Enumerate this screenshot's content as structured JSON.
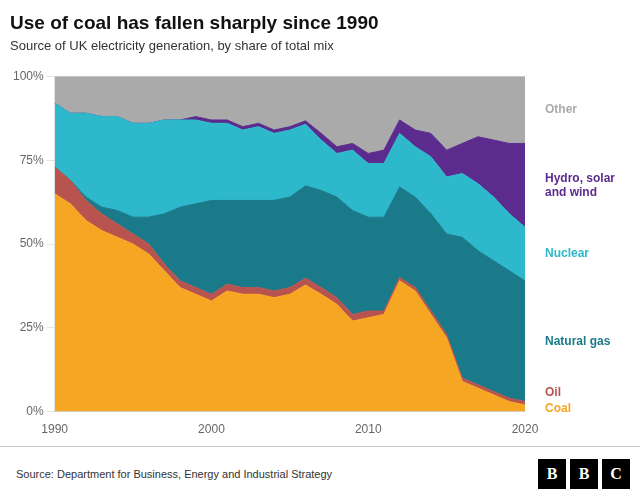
{
  "chart_data": {
    "type": "area",
    "title": "Use of coal has fallen sharply since 1990",
    "subtitle": "Source of UK electricity generation, by share of total mix",
    "source": "Source: Department for Business, Energy and Industrial Strategy",
    "logo": "BBC",
    "stacked": true,
    "grid": "y",
    "x": [
      1990,
      1991,
      1992,
      1993,
      1994,
      1995,
      1996,
      1997,
      1998,
      1999,
      2000,
      2001,
      2002,
      2003,
      2004,
      2005,
      2006,
      2007,
      2008,
      2009,
      2010,
      2011,
      2012,
      2013,
      2014,
      2015,
      2016,
      2017,
      2018,
      2019,
      2020
    ],
    "xlim": [
      1990,
      2020
    ],
    "xticks": [
      1990,
      2000,
      2010,
      2020
    ],
    "ylim": [
      0,
      100
    ],
    "yticks": [
      {
        "value": 0,
        "label": "0%"
      },
      {
        "value": 25,
        "label": "25%"
      },
      {
        "value": 50,
        "label": "50%"
      },
      {
        "value": 75,
        "label": "75%"
      },
      {
        "value": 100,
        "label": "100%"
      }
    ],
    "series": [
      {
        "name": "Coal",
        "color": "#F5A623",
        "values": [
          65,
          62,
          57,
          54,
          52,
          50,
          47,
          42,
          37,
          35,
          33,
          36,
          35,
          35,
          34,
          35,
          37.755102,
          35,
          32,
          27,
          28,
          29,
          39,
          36,
          29,
          22,
          9,
          7,
          5,
          3,
          2
        ]
      },
      {
        "name": "Oil",
        "color": "#B85450",
        "values": [
          8,
          7,
          6,
          5,
          4,
          3,
          3,
          2,
          2,
          2,
          2,
          2,
          2,
          2,
          2,
          2,
          2.040816,
          2,
          2,
          2,
          2,
          1,
          1,
          1,
          1,
          1,
          1,
          1,
          1,
          1,
          1
        ]
      },
      {
        "name": "Natural gas",
        "color": "#1A7A8A",
        "values": [
          0,
          0,
          1,
          2,
          4,
          5,
          8,
          15,
          22,
          25,
          28,
          25,
          26,
          26,
          27,
          27,
          27.55102,
          29,
          30,
          31,
          28,
          28,
          27,
          27,
          29,
          30,
          42,
          40,
          39,
          38,
          36
        ]
      },
      {
        "name": "Nuclear",
        "color": "#2EB8CC",
        "values": [
          19,
          20,
          25,
          27,
          28,
          28,
          28,
          28,
          26,
          25,
          23,
          23,
          21,
          22,
          20,
          20,
          18.367347,
          15,
          13,
          18,
          16,
          16,
          16,
          15,
          17,
          17,
          19,
          20,
          19,
          17,
          16
        ]
      },
      {
        "name": "Hydro, solar\nand wind",
        "color": "#5B2C8D",
        "values": [
          0,
          0,
          0,
          0,
          0,
          0,
          0,
          0,
          0,
          1,
          1,
          1,
          1,
          1,
          1,
          1,
          1.020408,
          2,
          2,
          2,
          3,
          4,
          4,
          5,
          7,
          8,
          9,
          14,
          17,
          21,
          25
        ]
      },
      {
        "name": "Other",
        "color": "#AAAAAA",
        "values": [
          8,
          11,
          11,
          12,
          12,
          14,
          14,
          13,
          13,
          12,
          13,
          13,
          15,
          14,
          16,
          15,
          13.265306,
          17,
          21,
          20,
          23,
          22,
          13,
          16,
          17,
          22,
          20,
          18,
          19,
          20,
          20
        ]
      }
    ]
  }
}
